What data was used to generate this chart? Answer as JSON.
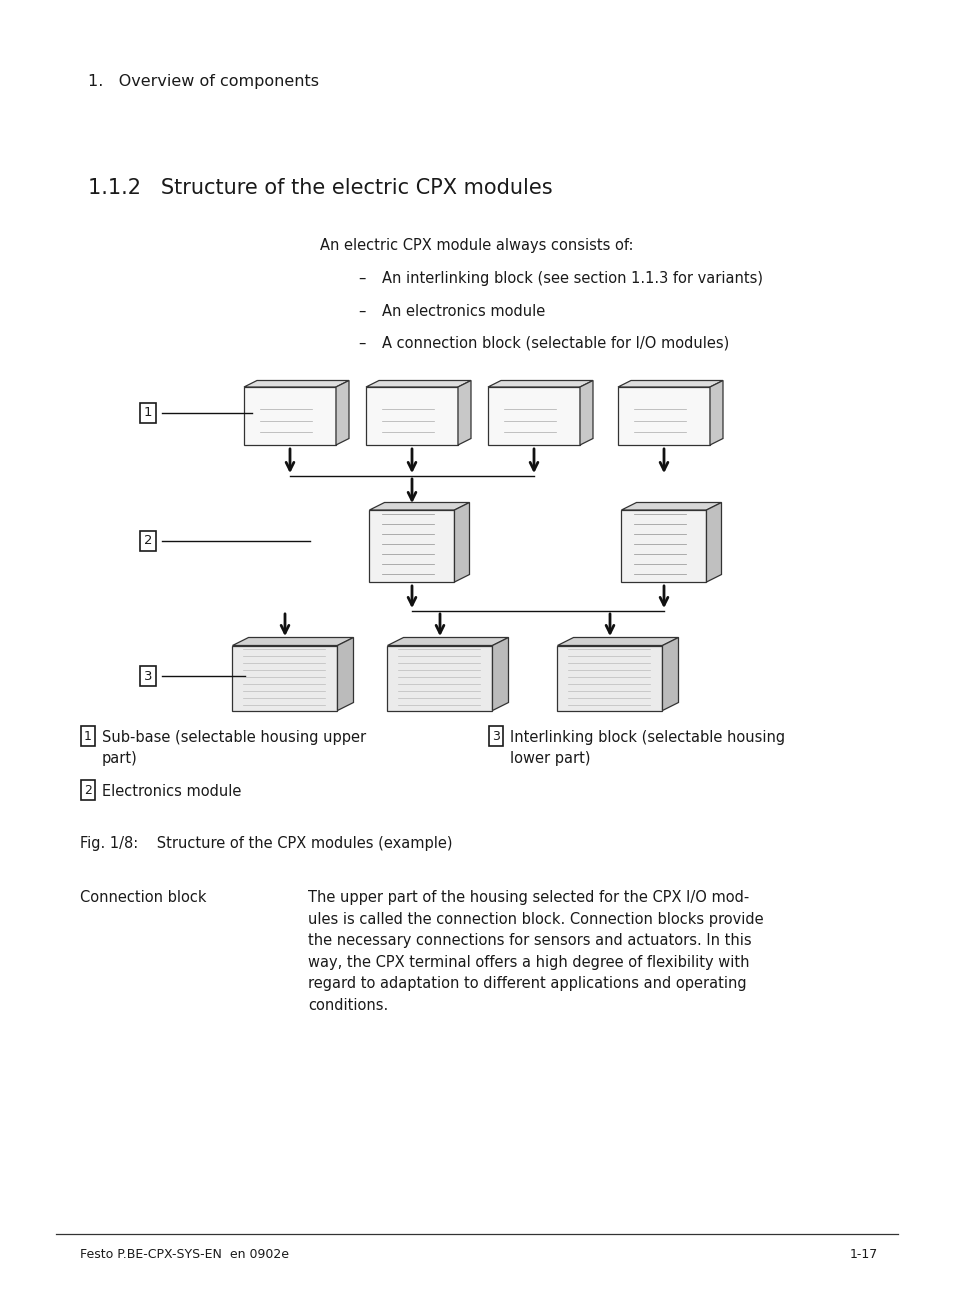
{
  "page_title": "1.   Overview of components",
  "section_title": "1.1.2   Structure of the electric CPX modules",
  "intro_text": "An electric CPX module always consists of:",
  "bullet1": "An interlinking block (see section 1.1.3 for variants)",
  "bullet2": "An electronics module",
  "bullet3": "A connection block (selectable for I/O modules)",
  "legend1_num": "1",
  "legend1_text": "Sub-base (selectable housing upper\npart)",
  "legend2_num": "2",
  "legend2_text": "Electronics module",
  "legend3_num": "3",
  "legend3_text": "Interlinking block (selectable housing\nlower part)",
  "fig_caption": "Fig. 1/8:    Structure of the CPX modules (example)",
  "cb_label": "Connection block",
  "cb_text": "The upper part of the housing selected for the CPX I/O mod-\nules is called the connection block. Connection blocks provide\nthe necessary connections for sensors and actuators. In this\nway, the CPX terminal offers a high degree of flexibility with\nregard to adaptation to different applications and operating\nconditions.",
  "footer_left": "Festo P.BE-CPX-SYS-EN  en 0902e",
  "footer_right": "1-17",
  "bg_color": "#ffffff",
  "fg_color": "#1a1a1a",
  "title_fs": 11.5,
  "section_fs": 15,
  "body_fs": 10.5,
  "small_fs": 9
}
